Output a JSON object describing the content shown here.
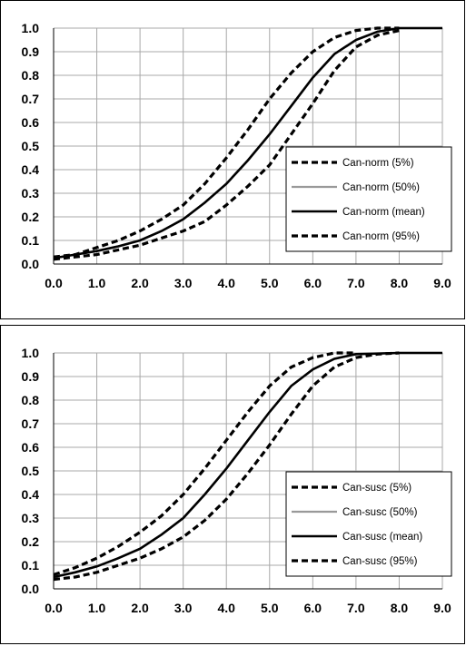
{
  "chart_data": [
    {
      "type": "line",
      "title": "",
      "xlabel": "",
      "ylabel": "",
      "xlim": [
        0,
        9
      ],
      "ylim": [
        0,
        1
      ],
      "x_ticks": [
        "0.0",
        "1.0",
        "2.0",
        "3.0",
        "4.0",
        "5.0",
        "6.0",
        "7.0",
        "8.0",
        "9.0"
      ],
      "y_ticks": [
        "0.0",
        "0.1",
        "0.2",
        "0.3",
        "0.4",
        "0.5",
        "0.6",
        "0.7",
        "0.8",
        "0.9",
        "1.0"
      ],
      "grid": true,
      "legend": "right",
      "series": [
        {
          "name": "Can-norm (5%)",
          "style": "dashed",
          "color": "#000000",
          "x": [
            0,
            0.5,
            1,
            1.5,
            2,
            2.5,
            3,
            3.5,
            4,
            4.5,
            5,
            5.5,
            6,
            6.5,
            7,
            7.5,
            8
          ],
          "y": [
            0.03,
            0.04,
            0.07,
            0.1,
            0.14,
            0.19,
            0.25,
            0.34,
            0.45,
            0.57,
            0.7,
            0.81,
            0.9,
            0.96,
            0.99,
            1.0,
            1.0
          ]
        },
        {
          "name": "Can-norm (50%)",
          "style": "solid",
          "color": "#999999",
          "x": [
            0,
            0.5,
            1,
            1.5,
            2,
            2.5,
            3,
            3.5,
            4,
            4.5,
            5,
            5.5,
            6,
            6.5,
            7,
            7.5,
            8,
            9
          ],
          "y": [
            0.025,
            0.04,
            0.055,
            0.075,
            0.1,
            0.14,
            0.19,
            0.26,
            0.34,
            0.44,
            0.55,
            0.67,
            0.79,
            0.89,
            0.95,
            0.985,
            1.0,
            1.0
          ]
        },
        {
          "name": "Can-norm (mean)",
          "style": "solid",
          "color": "#000000",
          "x": [
            0,
            0.5,
            1,
            1.5,
            2,
            2.5,
            3,
            3.5,
            4,
            4.5,
            5,
            5.5,
            6,
            6.5,
            7,
            7.5,
            8,
            9
          ],
          "y": [
            0.025,
            0.04,
            0.055,
            0.075,
            0.1,
            0.14,
            0.19,
            0.26,
            0.34,
            0.44,
            0.55,
            0.67,
            0.79,
            0.89,
            0.95,
            0.985,
            1.0,
            1.0
          ]
        },
        {
          "name": "Can-norm (95%)",
          "style": "dashed",
          "color": "#000000",
          "x": [
            0,
            0.5,
            1,
            1.5,
            2,
            2.5,
            3,
            3.5,
            4,
            4.5,
            5,
            5.5,
            6,
            6.5,
            7,
            7.5,
            8
          ],
          "y": [
            0.02,
            0.03,
            0.04,
            0.06,
            0.08,
            0.11,
            0.14,
            0.18,
            0.25,
            0.33,
            0.42,
            0.55,
            0.68,
            0.82,
            0.92,
            0.97,
            0.99
          ]
        }
      ]
    },
    {
      "type": "line",
      "title": "",
      "xlabel": "",
      "ylabel": "",
      "xlim": [
        0,
        9
      ],
      "ylim": [
        0,
        1
      ],
      "x_ticks": [
        "0.0",
        "1.0",
        "2.0",
        "3.0",
        "4.0",
        "5.0",
        "6.0",
        "7.0",
        "8.0",
        "9.0"
      ],
      "y_ticks": [
        "0.0",
        "0.1",
        "0.2",
        "0.3",
        "0.4",
        "0.5",
        "0.6",
        "0.7",
        "0.8",
        "0.9",
        "1.0"
      ],
      "grid": true,
      "legend": "right",
      "series": [
        {
          "name": "Can-susc (5%)",
          "style": "dashed",
          "color": "#000000",
          "x": [
            0,
            0.5,
            1,
            1.5,
            2,
            2.5,
            3,
            3.5,
            4,
            4.5,
            5,
            5.5,
            6,
            6.5,
            7
          ],
          "y": [
            0.06,
            0.09,
            0.13,
            0.18,
            0.24,
            0.31,
            0.4,
            0.51,
            0.63,
            0.75,
            0.86,
            0.94,
            0.98,
            1.0,
            1.0
          ]
        },
        {
          "name": "Can-susc (50%)",
          "style": "solid",
          "color": "#999999",
          "x": [
            0,
            0.5,
            1,
            1.5,
            2,
            2.5,
            3,
            3.5,
            4,
            4.5,
            5,
            5.5,
            6,
            6.5,
            7,
            8,
            9
          ],
          "y": [
            0.05,
            0.07,
            0.095,
            0.13,
            0.17,
            0.23,
            0.3,
            0.4,
            0.51,
            0.63,
            0.75,
            0.86,
            0.93,
            0.975,
            0.995,
            1.0,
            1.0
          ]
        },
        {
          "name": "Can-susc (mean)",
          "style": "solid",
          "color": "#000000",
          "x": [
            0,
            0.5,
            1,
            1.5,
            2,
            2.5,
            3,
            3.5,
            4,
            4.5,
            5,
            5.5,
            6,
            6.5,
            7,
            8,
            9
          ],
          "y": [
            0.05,
            0.07,
            0.095,
            0.13,
            0.17,
            0.23,
            0.3,
            0.4,
            0.51,
            0.63,
            0.75,
            0.86,
            0.93,
            0.975,
            0.995,
            1.0,
            1.0
          ]
        },
        {
          "name": "Can-susc (95%)",
          "style": "dashed",
          "color": "#000000",
          "x": [
            0,
            0.5,
            1,
            1.5,
            2,
            2.5,
            3,
            3.5,
            4,
            4.5,
            5,
            5.5,
            6,
            6.5,
            7,
            7.5,
            8
          ],
          "y": [
            0.04,
            0.05,
            0.07,
            0.1,
            0.13,
            0.17,
            0.22,
            0.29,
            0.38,
            0.49,
            0.61,
            0.74,
            0.86,
            0.94,
            0.98,
            0.995,
            1.0
          ]
        }
      ]
    }
  ]
}
